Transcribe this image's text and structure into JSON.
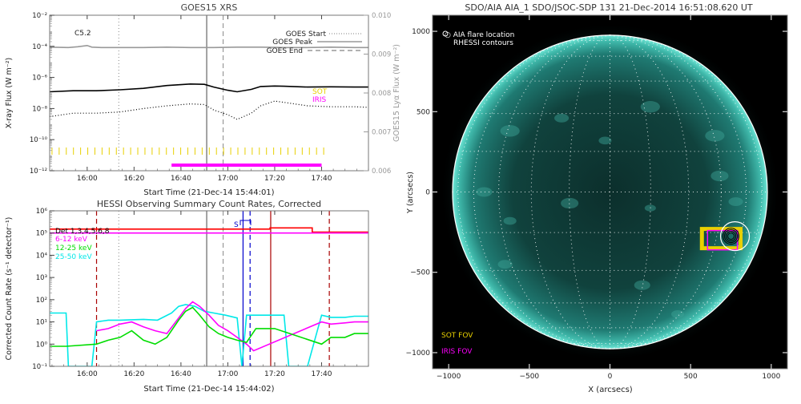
{
  "goes_panel": {
    "title": "GOES15 XRS",
    "xlabel": "Start Time (21-Dec-14 15:44:01)",
    "ylabel": "X-ray Flux (W m⁻²)",
    "y2label": "GOES15 Lyα Flux (W m⁻²)",
    "class_label": "C5.2",
    "legend": [
      {
        "label": "GOES Start",
        "style": "dotted",
        "color": "#999999"
      },
      {
        "label": "GOES Peak",
        "style": "solid",
        "color": "#999999"
      },
      {
        "label": "GOES End",
        "style": "dashed",
        "color": "#999999"
      }
    ],
    "instrument_labels": [
      {
        "label": "SOT",
        "color": "#e8d000"
      },
      {
        "label": "IRIS",
        "color": "#ff00ff"
      }
    ],
    "x_ticks": [
      {
        "label": "16:00",
        "minute": 16
      },
      {
        "label": "16:20",
        "minute": 36
      },
      {
        "label": "16:40",
        "minute": 56
      },
      {
        "label": "17:00",
        "minute": 76
      },
      {
        "label": "17:20",
        "minute": 96
      },
      {
        "label": "17:40",
        "minute": 116
      }
    ],
    "y_ticks": [
      {
        "label": "10⁻²",
        "exp": -2
      },
      {
        "label": "10⁻⁴",
        "exp": -4
      },
      {
        "label": "10⁻⁶",
        "exp": -6
      },
      {
        "label": "10⁻⁸",
        "exp": -8
      },
      {
        "label": "10⁻¹⁰",
        "exp": -10
      },
      {
        "label": "10⁻¹²",
        "exp": -12
      }
    ],
    "y2_ticks": [
      {
        "label": "0.010",
        "v": 0.01
      },
      {
        "label": "0.009",
        "v": 0.009
      },
      {
        "label": "0.008",
        "v": 0.008
      },
      {
        "label": "0.007",
        "v": 0.007
      },
      {
        "label": "0.006",
        "v": 0.006
      }
    ]
  },
  "hessi_panel": {
    "title": "HESSI Observing Summary Count Rates, Corrected",
    "xlabel": "Start Time (21-Dec-14 15:44:02)",
    "ylabel": "Corrected Count Rate (s⁻¹ detector⁻¹)",
    "legend": [
      {
        "label": "Det 1,3,4,5,6,8",
        "color": "#000000"
      },
      {
        "label": "6-12 keV",
        "color": "#ff00ff"
      },
      {
        "label": "12-25 keV",
        "color": "#00dd00"
      },
      {
        "label": "25-50 keV",
        "color": "#00e8e8"
      }
    ],
    "saa_label": "S",
    "x_ticks": [
      {
        "label": "16:00",
        "minute": 16
      },
      {
        "label": "16:20",
        "minute": 36
      },
      {
        "label": "16:40",
        "minute": 56
      },
      {
        "label": "17:00",
        "minute": 76
      },
      {
        "label": "17:20",
        "minute": 96
      },
      {
        "label": "17:40",
        "minute": 116
      }
    ],
    "y_ticks": [
      {
        "label": "10⁶",
        "exp": 6
      },
      {
        "label": "10⁵",
        "exp": 5
      },
      {
        "label": "10⁴",
        "exp": 4
      },
      {
        "label": "10³",
        "exp": 3
      },
      {
        "label": "10²",
        "exp": 2
      },
      {
        "label": "10¹",
        "exp": 1
      },
      {
        "label": "10⁰",
        "exp": 0
      },
      {
        "label": "10⁻¹",
        "exp": -1
      }
    ]
  },
  "aia_panel": {
    "title": "SDO/AIA AIA_1 SDO/JSOC-SDP 131 21-Dec-2014 16:51:08.620 UT",
    "xlabel": "X (arcsecs)",
    "ylabel": "Y (arcsecs)",
    "legend_lines": [
      "○ AIA flare location",
      "RHESSI contours"
    ],
    "fov_labels": [
      {
        "label": "SOT FOV",
        "color": "#e8d000"
      },
      {
        "label": "IRIS FOV",
        "color": "#ff00ff"
      }
    ],
    "x_ticks": [
      {
        "label": "−1000",
        "v": -1000
      },
      {
        "label": "−500",
        "v": -500
      },
      {
        "label": "0",
        "v": 0
      },
      {
        "label": "500",
        "v": 500
      },
      {
        "label": "1000",
        "v": 1000
      }
    ],
    "y_ticks": [
      {
        "label": "1000",
        "v": 1000
      },
      {
        "label": "500",
        "v": 500
      },
      {
        "label": "0",
        "v": 0
      },
      {
        "label": "−500",
        "v": -500
      },
      {
        "label": "−1000",
        "v": -1000
      }
    ]
  },
  "chart_data": [
    {
      "type": "line",
      "title": "GOES15 XRS",
      "xlabel": "Start Time (21-Dec-14 15:44:01)",
      "ylabel": "X-ray Flux (W m⁻²)",
      "x_unit": "minutes after 15:44:01",
      "xlim": [
        0,
        136
      ],
      "ylim": [
        1e-12,
        0.01
      ],
      "y_scale": "log",
      "y2lim": [
        0.006,
        0.01
      ],
      "series": [
        {
          "name": "Lyα",
          "axis": "y2",
          "color": "#999999",
          "x": [
            0,
            8,
            12,
            16,
            18,
            22,
            30,
            40,
            50,
            60,
            70,
            80,
            90,
            100,
            110,
            120,
            130,
            136
          ],
          "y": [
            0.00918,
            0.00917,
            0.00919,
            0.00922,
            0.00918,
            0.00917,
            0.00917,
            0.00917,
            0.00918,
            0.00917,
            0.00917,
            0.00918,
            0.00918,
            0.00917,
            0.00917,
            0.00918,
            0.00917,
            0.00917
          ]
        },
        {
          "color": "#000000",
          "x": [
            0,
            10,
            20,
            30,
            40,
            50,
            60,
            66,
            70,
            76,
            80,
            86,
            90,
            96,
            100,
            110,
            120,
            130,
            136
          ],
          "y": [
            1.2e-07,
            1.4e-07,
            1.4e-07,
            1.6e-07,
            2e-07,
            3e-07,
            3.8e-07,
            3.6e-07,
            2.4e-07,
            1.5e-07,
            1.2e-07,
            1.7e-07,
            2.6e-07,
            2.8e-07,
            2.7e-07,
            2.4e-07,
            2.5e-07,
            2.4e-07,
            2.4e-07
          ]
        },
        {
          "color": "#000000",
          "style": "dotted",
          "x": [
            0,
            10,
            20,
            30,
            40,
            50,
            60,
            66,
            70,
            76,
            80,
            86,
            90,
            96,
            100,
            110,
            120,
            130,
            136
          ],
          "y": [
            3e-09,
            5e-09,
            5e-09,
            6e-09,
            1e-08,
            1.5e-08,
            2e-08,
            1.8e-08,
            8e-09,
            4e-09,
            2e-09,
            5e-09,
            1.5e-08,
            3e-08,
            2.5e-08,
            1.5e-08,
            1.3e-08,
            1.3e-08,
            1.2e-08
          ]
        }
      ],
      "vertical_lines": [
        {
          "name": "GOES Start",
          "x": 29.5,
          "style": "dotted"
        },
        {
          "name": "GOES Peak",
          "x": 67,
          "style": "solid"
        },
        {
          "name": "GOES End",
          "x": 74,
          "style": "dashed"
        }
      ],
      "intervals": [
        {
          "name": "IRIS",
          "color": "#ff00ff",
          "x0": 52,
          "x1": 116
        },
        {
          "name": "SOT",
          "color": "#e8d000",
          "x0": 1,
          "x1": 118,
          "style": "ticks"
        }
      ]
    },
    {
      "type": "line",
      "title": "HESSI Observing Summary Count Rates, Corrected",
      "xlabel": "Start Time (21-Dec-14 15:44:02)",
      "ylabel": "Corrected Count Rate (s⁻¹ detector⁻¹)",
      "x_unit": "minutes after 15:44:02",
      "xlim": [
        0,
        136
      ],
      "ylim": [
        0.1,
        1000000.0
      ],
      "y_scale": "log",
      "series": [
        {
          "name": "25-50 keV",
          "color": "#00e8e8",
          "x": [
            0,
            7,
            8,
            18,
            20,
            25,
            30,
            40,
            46,
            52,
            55,
            58,
            62,
            66,
            70,
            75,
            80,
            82,
            84,
            96,
            100,
            102,
            110,
            116,
            120,
            126,
            130,
            136
          ],
          "y": [
            25,
            25,
            0.1,
            0.1,
            10,
            12,
            12,
            13,
            12,
            25,
            50,
            60,
            50,
            30,
            25,
            20,
            15,
            0.1,
            20,
            20,
            20,
            0.1,
            0.1,
            20,
            16,
            16,
            18,
            18
          ]
        },
        {
          "name": "6-12 keV",
          "color": "#ff00ff",
          "x": [
            20,
            25,
            30,
            35,
            40,
            45,
            50,
            55,
            58,
            61,
            64,
            68,
            72,
            76,
            80,
            84,
            87,
            116,
            120,
            126,
            130,
            136
          ],
          "y": [
            4,
            5,
            8,
            10,
            6,
            4,
            3,
            15,
            40,
            80,
            50,
            20,
            7,
            4,
            2,
            1,
            0.5,
            10,
            8,
            9,
            10,
            10
          ]
        },
        {
          "name": "12-25 keV",
          "color": "#00dd00",
          "x": [
            0,
            7,
            20,
            25,
            30,
            35,
            40,
            45,
            50,
            55,
            58,
            61,
            64,
            68,
            72,
            76,
            80,
            84,
            88,
            90,
            96,
            116,
            120,
            126,
            130,
            136
          ],
          "y": [
            0.8,
            0.8,
            1,
            1.5,
            2,
            4,
            1.5,
            1,
            2,
            12,
            30,
            45,
            20,
            6,
            3,
            2,
            1.5,
            1.2,
            5,
            5,
            5,
            1,
            2,
            2,
            3,
            3
          ]
        },
        {
          "name": "Attenuator state",
          "color": "#ff0000",
          "x": [
            0,
            94,
            94,
            112,
            112,
            136
          ],
          "y": [
            150000.0,
            150000.0,
            170000.0,
            170000.0,
            110000.0,
            110000.0
          ]
        },
        {
          "color": "#ff00ff",
          "x": [
            0,
            136
          ],
          "y": [
            100000.0,
            100000.0
          ]
        }
      ],
      "vertical_lines": [
        {
          "name": "GOES Start",
          "x": 29.5,
          "style": "dotted"
        },
        {
          "name": "GOES Peak",
          "x": 67,
          "style": "solid"
        },
        {
          "name": "GOES End",
          "x": 74,
          "style": "dashed"
        },
        {
          "name": "S",
          "x": 82.5,
          "color": "#0000cc",
          "style": "solid"
        },
        {
          "name": "S",
          "x": 85.5,
          "color": "#0000cc",
          "style": "dashed"
        },
        {
          "color": "#aa0000",
          "x": 20,
          "style": "dashed"
        },
        {
          "color": "#aa0000",
          "x": 94.3,
          "style": "solid"
        },
        {
          "color": "#aa0000",
          "x": 119.3,
          "style": "dashed"
        }
      ]
    },
    {
      "type": "heatmap",
      "title": "SDO/AIA AIA_1 SDO/JSOC-SDP 131 21-Dec-2014 16:51:08.620 UT",
      "xlabel": "X (arcsecs)",
      "ylabel": "Y (arcsecs)",
      "xlim": [
        -1100,
        1100
      ],
      "ylim": [
        -1100,
        1100
      ],
      "solar_radius_arcsec": 976,
      "grid": "heliographic, dotted",
      "flare_location": {
        "x": 760,
        "y": -275
      },
      "sot_fov": {
        "x0": 570,
        "x1": 810,
        "y0": -350,
        "y1": -230,
        "color": "#e8d000"
      },
      "iris_fov": {
        "x0": 605,
        "x1": 790,
        "y0": -360,
        "y1": -240,
        "color": "#ff00ff"
      }
    }
  ]
}
